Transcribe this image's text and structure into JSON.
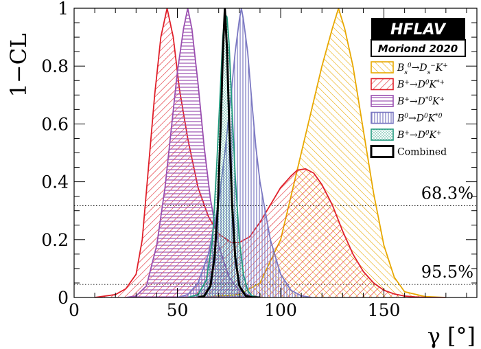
{
  "chart_data": {
    "type": "area",
    "xlabel": "γ [°]",
    "ylabel": "1−CL",
    "xlim": [
      0,
      195
    ],
    "ylim": [
      0,
      1
    ],
    "x_ticks": [
      0,
      50,
      100,
      150
    ],
    "y_ticks": [
      0,
      0.2,
      0.4,
      0.6,
      0.8,
      1
    ],
    "x_tick_labels": [
      "0",
      "50",
      "100",
      "150"
    ],
    "y_tick_labels": [
      "0",
      "0.2",
      "0.4",
      "0.6",
      "0.8",
      "1"
    ],
    "reference_lines": [
      {
        "y": 0.317,
        "label": "68.3%"
      },
      {
        "y": 0.045,
        "label": "95.5%"
      }
    ],
    "badge": {
      "title": "HFLAV",
      "subtitle": "Moriond 2020"
    },
    "legend_position": "top-right",
    "series": [
      {
        "name": "Bs0→Ds−K+",
        "legend_parts": {
          "a": "B",
          "a_sub": "s",
          "a_sup": "0",
          "b": "D",
          "b_sub": "s",
          "b_sup": "−",
          "c": "K",
          "c_sup": "+"
        },
        "color": "#e8a800",
        "pattern": "hatch-ne",
        "x": [
          60,
          80,
          90,
          100,
          105,
          110,
          115,
          120,
          125,
          128,
          131,
          135,
          140,
          145,
          150,
          155,
          160,
          170,
          180
        ],
        "y": [
          0.0,
          0.01,
          0.05,
          0.2,
          0.35,
          0.5,
          0.65,
          0.8,
          0.93,
          1.0,
          0.93,
          0.8,
          0.58,
          0.36,
          0.18,
          0.07,
          0.02,
          0.003,
          0.0
        ]
      },
      {
        "name": "B+→D0K*+",
        "legend_parts": {
          "a": "B",
          "a_sup": "+",
          "b": "D",
          "b_sup": "0",
          "c": "K",
          "c_sup": "*+"
        },
        "color": "#e0202a",
        "pattern": "hatch-nw",
        "x": [
          10,
          20,
          25,
          30,
          33,
          36,
          39,
          42,
          45,
          48,
          51,
          55,
          60,
          65,
          70,
          76,
          80,
          85,
          90,
          95,
          100,
          105,
          108,
          112,
          116,
          120,
          125,
          130,
          135,
          140,
          145,
          150,
          155,
          160,
          165,
          170,
          180
        ],
        "y": [
          0.0,
          0.01,
          0.03,
          0.08,
          0.2,
          0.45,
          0.7,
          0.9,
          1.0,
          0.9,
          0.72,
          0.55,
          0.38,
          0.28,
          0.22,
          0.19,
          0.19,
          0.21,
          0.26,
          0.32,
          0.38,
          0.42,
          0.44,
          0.445,
          0.43,
          0.39,
          0.32,
          0.23,
          0.15,
          0.09,
          0.05,
          0.025,
          0.012,
          0.005,
          0.002,
          0.0005,
          0.0
        ]
      },
      {
        "name": "B+→D*0K+",
        "legend_parts": {
          "a": "B",
          "a_sup": "+",
          "b": "D",
          "b_sup": "*0",
          "c": "K",
          "c_sup": "+"
        },
        "color": "#9a4fb0",
        "pattern": "hatch-h",
        "x": [
          25,
          30,
          35,
          40,
          44,
          47,
          50,
          53,
          55,
          57,
          60,
          63,
          66,
          70,
          75,
          80,
          85,
          90
        ],
        "y": [
          0.0,
          0.005,
          0.04,
          0.18,
          0.38,
          0.58,
          0.78,
          0.93,
          1.0,
          0.93,
          0.74,
          0.52,
          0.34,
          0.18,
          0.07,
          0.025,
          0.006,
          0.0
        ]
      },
      {
        "name": "B0→D0K*0",
        "legend_parts": {
          "a": "B",
          "a_sup": "0",
          "b": "D",
          "b_sup": "0",
          "c": "K",
          "c_sup": "*0"
        },
        "color": "#7b78c2",
        "pattern": "hatch-v",
        "x": [
          50,
          55,
          60,
          65,
          70,
          73,
          76,
          78,
          80,
          81,
          82,
          84,
          86,
          88,
          90,
          95,
          100,
          105,
          110,
          115
        ],
        "y": [
          0.0,
          0.01,
          0.05,
          0.15,
          0.33,
          0.5,
          0.7,
          0.85,
          0.96,
          1.0,
          0.96,
          0.85,
          0.68,
          0.52,
          0.4,
          0.2,
          0.08,
          0.025,
          0.006,
          0.0
        ]
      },
      {
        "name": "B+→D0K+",
        "legend_parts": {
          "a": "B",
          "a_sup": "+",
          "b": "D",
          "b_sup": "0",
          "c": "K",
          "c_sup": "+"
        },
        "color": "#229b7e",
        "pattern": "dots",
        "x": [
          55,
          60,
          64,
          67,
          69,
          71,
          72,
          73,
          74,
          75,
          76,
          78,
          80,
          82,
          84,
          86,
          90
        ],
        "y": [
          0.0,
          0.01,
          0.06,
          0.2,
          0.45,
          0.75,
          0.9,
          0.98,
          0.97,
          0.88,
          0.72,
          0.42,
          0.2,
          0.08,
          0.025,
          0.006,
          0.0
        ]
      },
      {
        "name": "Combined",
        "legend_parts": {
          "text": "Combined"
        },
        "color": "#000000",
        "pattern": "none",
        "x": [
          60,
          63,
          66,
          68,
          69.5,
          71,
          72,
          73,
          74,
          75,
          76.5,
          78,
          80,
          83,
          86,
          90
        ],
        "y": [
          0.0,
          0.005,
          0.04,
          0.14,
          0.3,
          0.6,
          0.84,
          1.0,
          0.86,
          0.62,
          0.32,
          0.14,
          0.04,
          0.006,
          0.001,
          0.0
        ]
      }
    ]
  }
}
